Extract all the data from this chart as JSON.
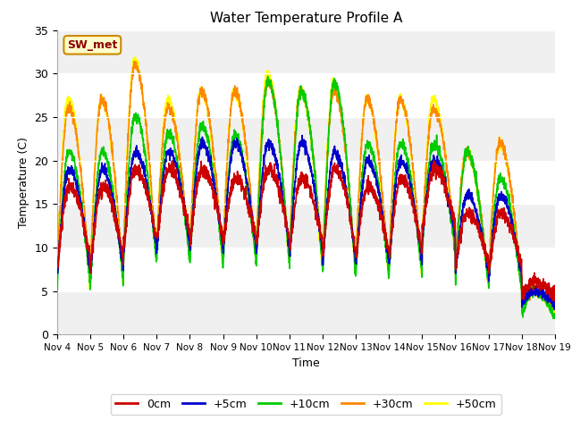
{
  "title": "Water Temperature Profile A",
  "ylabel": "Temperature (C)",
  "xlabel": "Time",
  "ylim": [
    0,
    35
  ],
  "colors": {
    "0cm": "#cc0000",
    "+5cm": "#0000cc",
    "+10cm": "#00cc00",
    "+30cm": "#ff8800",
    "+50cm": "#ffff00"
  },
  "legend_label": "SW_met",
  "xtick_labels": [
    "Nov 4",
    "Nov 5",
    "Nov 6",
    "Nov 7",
    "Nov 8",
    "Nov 9",
    "Nov 10",
    "Nov 11",
    "Nov 12",
    "Nov 13",
    "Nov 14",
    "Nov 15",
    "Nov 16",
    "Nov 17",
    "Nov 18",
    "Nov 19"
  ],
  "ytick_labels": [
    0,
    5,
    10,
    15,
    20,
    25,
    30,
    35
  ],
  "linewidth": 1.2,
  "bg_bands": [
    [
      0,
      5,
      "#f0f0f0"
    ],
    [
      5,
      10,
      "#ffffff"
    ],
    [
      10,
      15,
      "#f0f0f0"
    ],
    [
      15,
      20,
      "#ffffff"
    ],
    [
      20,
      25,
      "#f0f0f0"
    ],
    [
      25,
      30,
      "#ffffff"
    ],
    [
      30,
      35,
      "#f0f0f0"
    ]
  ]
}
